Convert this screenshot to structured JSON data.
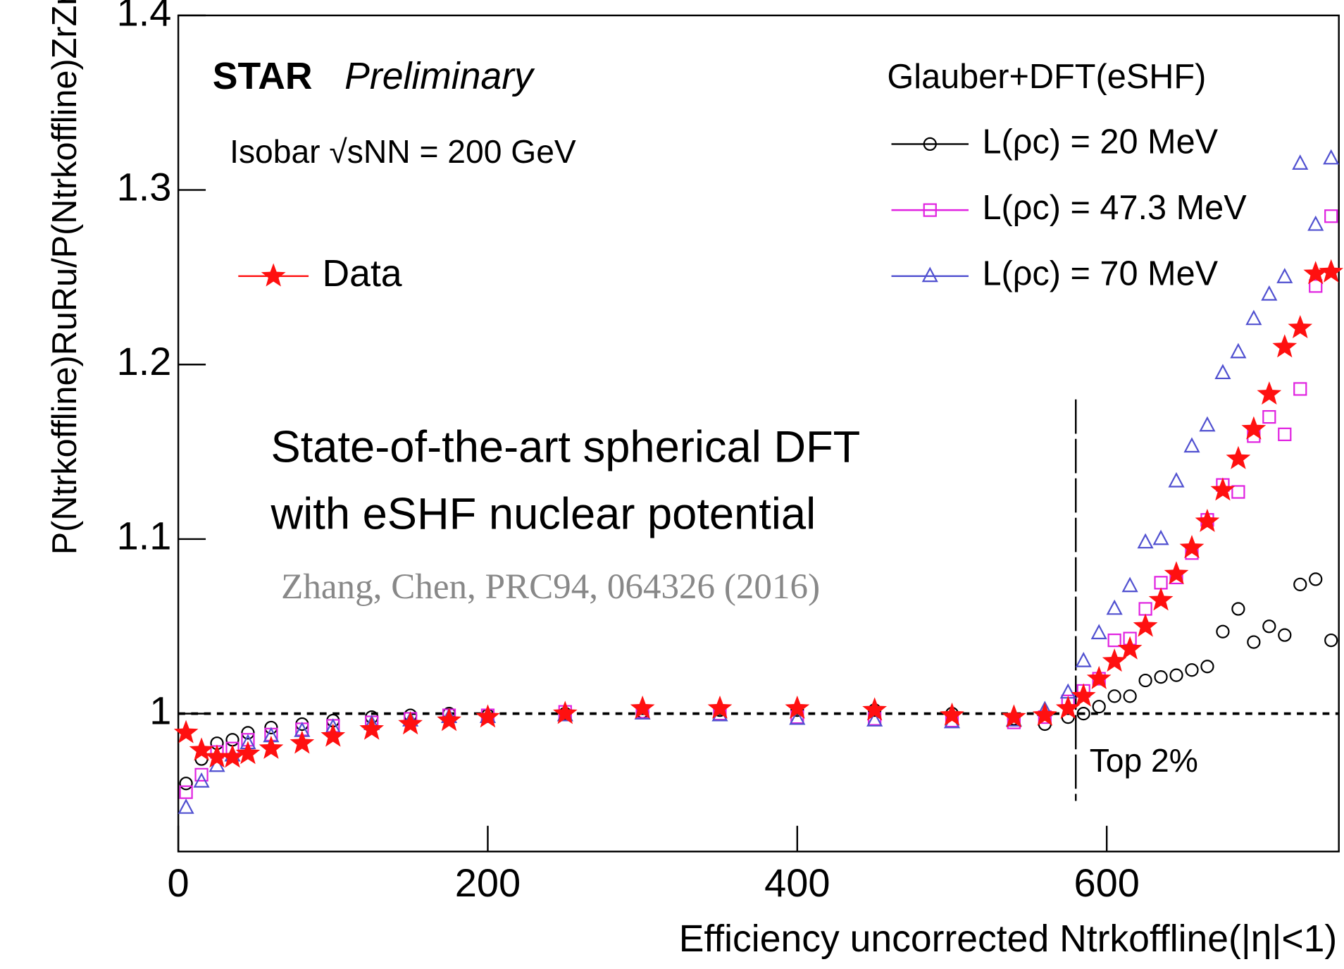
{
  "chart_data": {
    "type": "scatter",
    "x_label": "Efficiency uncorrected Ntrkoffline(|η|<1)",
    "y_label": "P(Ntrkoffline)RuRu/P(Ntrkoffline)ZrZr",
    "x": [
      5,
      15,
      25,
      35,
      45,
      60,
      80,
      100,
      125,
      150,
      175,
      200,
      250,
      300,
      350,
      400,
      450,
      500,
      540,
      560,
      575,
      585,
      595,
      605,
      615,
      625,
      635,
      645,
      655,
      665,
      675,
      685,
      695,
      705,
      715,
      725,
      735,
      745
    ],
    "series": [
      {
        "name": "L(ρc) = 20 MeV",
        "color": "#000000",
        "marker": "circle",
        "values": [
          0.96,
          0.974,
          0.983,
          0.985,
          0.989,
          0.992,
          0.994,
          0.996,
          0.998,
          0.999,
          1.0,
          0.999,
          1.0,
          1.001,
          1.002,
          1.002,
          1.002,
          1.0,
          0.997,
          0.994,
          0.998,
          1.0,
          1.004,
          1.01,
          1.01,
          1.019,
          1.021,
          1.022,
          1.025,
          1.027,
          1.047,
          1.06,
          1.041,
          1.05,
          1.045,
          1.074,
          1.077,
          1.042
        ]
      },
      {
        "name": "L(ρc) = 47.3 MeV",
        "color": "#e020e0",
        "marker": "square",
        "values": [
          0.955,
          0.965,
          0.978,
          0.98,
          0.985,
          0.988,
          0.991,
          0.993,
          0.995,
          0.997,
          0.999,
          0.999,
          1.001,
          1.001,
          1.0,
          0.998,
          0.997,
          0.996,
          0.995,
          0.998,
          1.007,
          1.013,
          1.02,
          1.042,
          1.043,
          1.06,
          1.075,
          1.078,
          1.092,
          1.111,
          1.131,
          1.127,
          1.159,
          1.17,
          1.16,
          1.186,
          1.245,
          1.285
        ]
      },
      {
        "name": "L(ρc) = 70 MeV",
        "color": "#5050d0",
        "marker": "triangle",
        "values": [
          0.946,
          0.961,
          0.97,
          0.976,
          0.983,
          0.987,
          0.99,
          0.992,
          0.994,
          0.996,
          0.998,
          0.998,
          0.999,
          1.0,
          0.999,
          0.997,
          0.996,
          0.995,
          0.996,
          1.002,
          1.012,
          1.03,
          1.046,
          1.06,
          1.073,
          1.098,
          1.1,
          1.133,
          1.153,
          1.165,
          1.195,
          1.207,
          1.226,
          1.24,
          1.25,
          1.315,
          1.28,
          1.318
        ]
      },
      {
        "name": "Data",
        "color": "#ff1010",
        "marker": "star",
        "values": [
          0.989,
          0.979,
          0.975,
          0.975,
          0.977,
          0.98,
          0.983,
          0.987,
          0.991,
          0.994,
          0.996,
          0.998,
          1.0,
          1.003,
          1.003,
          1.003,
          1.002,
          0.999,
          0.998,
          0.999,
          1.003,
          1.01,
          1.02,
          1.03,
          1.037,
          1.05,
          1.065,
          1.08,
          1.095,
          1.11,
          1.128,
          1.146,
          1.163,
          1.183,
          1.21,
          1.221,
          1.252,
          1.253
        ]
      }
    ],
    "xlim": [
      0,
      750
    ],
    "xticks": [
      0,
      200,
      400,
      600
    ],
    "ylim": [
      0.921,
      1.4
    ],
    "yticks": [
      1,
      1.1,
      1.2,
      1.3,
      1.4
    ],
    "reference_line_y": 1,
    "cut_line_x": 580,
    "annotations": {
      "experiment": "STAR",
      "status": "Preliminary",
      "system": "Isobar √sNN = 200 GeV",
      "legend_title": "Glauber+DFT(eSHF)",
      "note_line1": "State-of-the-art spherical DFT",
      "note_line2": "with eSHF nuclear potential",
      "citation": "Zhang, Chen, PRC94, 064326 (2016)",
      "cut_label": "Top 2%"
    }
  }
}
